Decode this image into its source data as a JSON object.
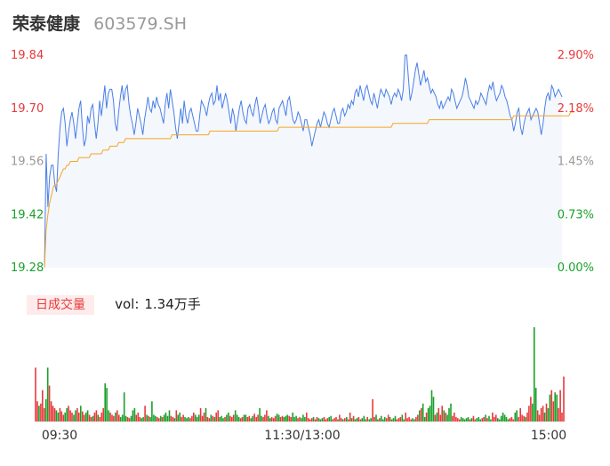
{
  "header": {
    "name": "荣泰健康",
    "code": "603579.SH"
  },
  "volume_panel": {
    "badge": "日成交量",
    "label": "vol:",
    "value": "1.34万手"
  },
  "colors": {
    "price_line": "#4a7fe6",
    "avg_line": "#f5a623",
    "up": "#e8393b",
    "down": "#1aa12a",
    "neutral": "#999999",
    "area_fill": "#f4f7fc"
  },
  "chart_data": [
    {
      "type": "line",
      "series": [
        {
          "values": [
            19.28,
            19.58,
            19.44,
            19.52,
            19.55,
            19.55,
            19.5,
            19.48,
            19.58,
            19.65,
            19.69,
            19.7,
            19.66,
            19.6,
            19.64,
            19.67,
            19.69,
            19.66,
            19.62,
            19.66,
            19.7,
            19.72,
            19.65,
            19.6,
            19.62,
            19.68,
            19.66,
            19.7,
            19.71,
            19.66,
            19.62,
            19.66,
            19.72,
            19.68,
            19.72,
            19.76,
            19.7,
            19.74,
            19.75,
            19.75,
            19.72,
            19.66,
            19.64,
            19.69,
            19.73,
            19.76,
            19.72,
            19.75,
            19.76,
            19.71,
            19.68,
            19.66,
            19.63,
            19.66,
            19.7,
            19.68,
            19.66,
            19.63,
            19.67,
            19.7,
            19.73,
            19.7,
            19.69,
            19.72,
            19.7,
            19.73,
            19.71,
            19.7,
            19.68,
            19.66,
            19.71,
            19.74,
            19.7,
            19.75,
            19.72,
            19.69,
            19.65,
            19.62,
            19.66,
            19.7,
            19.66,
            19.72,
            19.68,
            19.66,
            19.69,
            19.7,
            19.68,
            19.66,
            19.64,
            19.64,
            19.68,
            19.72,
            19.71,
            19.7,
            19.68,
            19.71,
            19.73,
            19.74,
            19.71,
            19.72,
            19.76,
            19.72,
            19.74,
            19.7,
            19.72,
            19.74,
            19.72,
            19.69,
            19.66,
            19.7,
            19.68,
            19.64,
            19.67,
            19.7,
            19.72,
            19.69,
            19.67,
            19.66,
            19.7,
            19.71,
            19.69,
            19.68,
            19.71,
            19.73,
            19.7,
            19.66,
            19.68,
            19.7,
            19.71,
            19.68,
            19.66,
            19.67,
            19.69,
            19.7,
            19.67,
            19.66,
            19.7,
            19.71,
            19.72,
            19.7,
            19.68,
            19.72,
            19.73,
            19.7,
            19.67,
            19.66,
            19.67,
            19.69,
            19.68,
            19.66,
            19.64,
            19.67,
            19.67,
            19.65,
            19.63,
            19.6,
            19.62,
            19.64,
            19.66,
            19.67,
            19.65,
            19.67,
            19.69,
            19.68,
            19.66,
            19.65,
            19.67,
            19.69,
            19.7,
            19.68,
            19.66,
            19.66,
            19.69,
            19.7,
            19.68,
            19.69,
            19.71,
            19.7,
            19.72,
            19.71,
            19.74,
            19.75,
            19.73,
            19.76,
            19.74,
            19.72,
            19.75,
            19.76,
            19.74,
            19.72,
            19.71,
            19.74,
            19.72,
            19.7,
            19.73,
            19.75,
            19.74,
            19.73,
            19.75,
            19.74,
            19.73,
            19.71,
            19.73,
            19.74,
            19.73,
            19.75,
            19.74,
            19.72,
            19.75,
            19.84,
            19.84,
            19.78,
            19.72,
            19.74,
            19.77,
            19.8,
            19.82,
            19.79,
            19.76,
            19.78,
            19.8,
            19.77,
            19.78,
            19.76,
            19.74,
            19.75,
            19.74,
            19.73,
            19.71,
            19.7,
            19.72,
            19.7,
            19.71,
            19.72,
            19.73,
            19.72,
            19.75,
            19.74,
            19.72,
            19.7,
            19.71,
            19.72,
            19.73,
            19.75,
            19.78,
            19.76,
            19.73,
            19.72,
            19.71,
            19.7,
            19.72,
            19.71,
            19.72,
            19.74,
            19.73,
            19.72,
            19.71,
            19.74,
            19.76,
            19.75,
            19.77,
            19.74,
            19.72,
            19.73,
            19.74,
            19.76,
            19.75,
            19.73,
            19.72,
            19.7,
            19.68,
            19.67,
            19.64,
            19.66,
            19.69,
            19.7,
            19.65,
            19.63,
            19.66,
            19.68,
            19.69,
            19.7,
            19.67,
            19.68,
            19.69,
            19.7,
            19.69,
            19.66,
            19.63,
            19.66,
            19.7,
            19.73,
            19.74,
            19.72,
            19.76,
            19.75,
            19.73,
            19.74,
            19.75,
            19.74,
            19.73
          ]
        },
        {
          "values": [
            19.28,
            19.38,
            19.42,
            19.45,
            19.47,
            19.49,
            19.5,
            19.5,
            19.51,
            19.52,
            19.53,
            19.54,
            19.54,
            19.55,
            19.55,
            19.56,
            19.56,
            19.56,
            19.56,
            19.56,
            19.57,
            19.57,
            19.57,
            19.57,
            19.57,
            19.57,
            19.57,
            19.58,
            19.58,
            19.58,
            19.58,
            19.58,
            19.58,
            19.58,
            19.59,
            19.59,
            19.59,
            19.59,
            19.6,
            19.6,
            19.6,
            19.6,
            19.6,
            19.61,
            19.61,
            19.61,
            19.61,
            19.62,
            19.62,
            19.62,
            19.62,
            19.62,
            19.62,
            19.62,
            19.62,
            19.62,
            19.62,
            19.62,
            19.62,
            19.62,
            19.62,
            19.62,
            19.62,
            19.62,
            19.62,
            19.62,
            19.62,
            19.62,
            19.62,
            19.62,
            19.62,
            19.62,
            19.62,
            19.62,
            19.63,
            19.63,
            19.63,
            19.63,
            19.63,
            19.63,
            19.63,
            19.63,
            19.63,
            19.63,
            19.63,
            19.63,
            19.63,
            19.63,
            19.63,
            19.63,
            19.63,
            19.63,
            19.63,
            19.63,
            19.63,
            19.63,
            19.64,
            19.64,
            19.64,
            19.64,
            19.64,
            19.64,
            19.64,
            19.64,
            19.64,
            19.64,
            19.64,
            19.64,
            19.64,
            19.64,
            19.64,
            19.64,
            19.64,
            19.64,
            19.64,
            19.64,
            19.64,
            19.64,
            19.64,
            19.64,
            19.64,
            19.64,
            19.64,
            19.64,
            19.64,
            19.64,
            19.64,
            19.64,
            19.64,
            19.64,
            19.64,
            19.64,
            19.64,
            19.64,
            19.64,
            19.64,
            19.65,
            19.65,
            19.65,
            19.65,
            19.65,
            19.65,
            19.65,
            19.65,
            19.65,
            19.65,
            19.65,
            19.65,
            19.65,
            19.65,
            19.65,
            19.65,
            19.65,
            19.65,
            19.65,
            19.65,
            19.65,
            19.65,
            19.65,
            19.65,
            19.65,
            19.65,
            19.65,
            19.65,
            19.65,
            19.65,
            19.65,
            19.65,
            19.65,
            19.65,
            19.65,
            19.65,
            19.65,
            19.65,
            19.65,
            19.65,
            19.65,
            19.65,
            19.65,
            19.65,
            19.65,
            19.65,
            19.65,
            19.65,
            19.65,
            19.65,
            19.65,
            19.65,
            19.65,
            19.65,
            19.65,
            19.65,
            19.65,
            19.65,
            19.65,
            19.65,
            19.65,
            19.65,
            19.65,
            19.65,
            19.65,
            19.65,
            19.66,
            19.66,
            19.66,
            19.66,
            19.66,
            19.66,
            19.66,
            19.66,
            19.66,
            19.66,
            19.66,
            19.66,
            19.66,
            19.66,
            19.66,
            19.66,
            19.66,
            19.66,
            19.66,
            19.66,
            19.66,
            19.67,
            19.67,
            19.67,
            19.67,
            19.67,
            19.67,
            19.67,
            19.67,
            19.67,
            19.67,
            19.67,
            19.67,
            19.67,
            19.67,
            19.67,
            19.67,
            19.67,
            19.67,
            19.67,
            19.67,
            19.67,
            19.67,
            19.67,
            19.67,
            19.67,
            19.67,
            19.67,
            19.67,
            19.67,
            19.67,
            19.67,
            19.67,
            19.67,
            19.67,
            19.67,
            19.67,
            19.67,
            19.67,
            19.67,
            19.67,
            19.67,
            19.67,
            19.67,
            19.67,
            19.67,
            19.67,
            19.67,
            19.67,
            19.67,
            19.68,
            19.68,
            19.68,
            19.68,
            19.68,
            19.68,
            19.68,
            19.68,
            19.68,
            19.68,
            19.68,
            19.68,
            19.68,
            19.68,
            19.68,
            19.68,
            19.68,
            19.68,
            19.68,
            19.68,
            19.68,
            19.68,
            19.68,
            19.68,
            19.68,
            19.68,
            19.68,
            19.68,
            19.68,
            19.68,
            19.68,
            19.68,
            19.68,
            19.69,
            19.69,
            19.69
          ]
        }
      ],
      "ylim": [
        19.28,
        19.84
      ],
      "y_ticks": [
        "19.84",
        "19.70",
        "19.56",
        "19.42",
        "19.28"
      ],
      "y_ticks_right": [
        "2.90%",
        "2.18%",
        "1.45%",
        "0.73%",
        "0.00%"
      ],
      "x_ticks": [
        "09:30",
        "11:30/13:00",
        "15:00"
      ]
    },
    {
      "type": "bar",
      "series": [
        {
          "values": [
            0.48,
            0.18,
            0.14,
            0.16,
            0.28,
            0.12,
            0.2,
            0.48,
            0.32,
            0.18,
            0.14,
            0.12,
            0.1,
            0.08,
            0.12,
            0.09,
            0.06,
            0.08,
            0.12,
            0.14,
            0.1,
            0.08,
            0.06,
            0.1,
            0.12,
            0.08,
            0.14,
            0.09,
            0.06,
            0.08,
            0.1,
            0.06,
            0.04,
            0.05,
            0.08,
            0.1,
            0.06,
            0.04,
            0.08,
            0.12,
            0.34,
            0.3,
            0.1,
            0.08,
            0.06,
            0.05,
            0.08,
            0.1,
            0.06,
            0.04,
            0.06,
            0.26,
            0.05,
            0.04,
            0.03,
            0.05,
            0.1,
            0.12,
            0.06,
            0.08,
            0.04,
            0.03,
            0.04,
            0.14,
            0.06,
            0.05,
            0.04,
            0.18,
            0.06,
            0.05,
            0.04,
            0.03,
            0.05,
            0.04,
            0.06,
            0.08,
            0.05,
            0.1,
            0.05,
            0.04,
            0.03,
            0.1,
            0.06,
            0.08,
            0.04,
            0.06,
            0.04,
            0.03,
            0.04,
            0.03,
            0.05,
            0.08,
            0.06,
            0.04,
            0.06,
            0.12,
            0.05,
            0.08,
            0.12,
            0.04,
            0.03,
            0.06,
            0.05,
            0.04,
            0.08,
            0.1,
            0.04,
            0.05,
            0.03,
            0.04,
            0.06,
            0.08,
            0.05,
            0.04,
            0.06,
            0.1,
            0.06,
            0.04,
            0.03,
            0.04,
            0.06,
            0.06,
            0.04,
            0.05,
            0.03,
            0.05,
            0.07,
            0.04,
            0.06,
            0.12,
            0.05,
            0.04,
            0.06,
            0.1,
            0.05,
            0.03,
            0.04,
            0.03,
            0.05,
            0.07,
            0.06,
            0.04,
            0.05,
            0.04,
            0.05,
            0.06,
            0.05,
            0.04,
            0.08,
            0.04,
            0.05,
            0.03,
            0.04,
            0.03,
            0.06,
            0.04,
            0.08,
            0.03,
            0.02,
            0.03,
            0.04,
            0.02,
            0.04,
            0.03,
            0.02,
            0.03,
            0.04,
            0.02,
            0.03,
            0.04,
            0.05,
            0.02,
            0.03,
            0.04,
            0.02,
            0.06,
            0.03,
            0.02,
            0.03,
            0.04,
            0.02,
            0.08,
            0.03,
            0.05,
            0.02,
            0.03,
            0.04,
            0.02,
            0.03,
            0.05,
            0.02,
            0.04,
            0.02,
            0.03,
            0.2,
            0.04,
            0.06,
            0.02,
            0.03,
            0.05,
            0.02,
            0.04,
            0.03,
            0.06,
            0.04,
            0.02,
            0.03,
            0.05,
            0.02,
            0.03,
            0.04,
            0.06,
            0.02,
            0.08,
            0.03,
            0.04,
            0.02,
            0.03,
            0.02,
            0.04,
            0.06,
            0.1,
            0.12,
            0.16,
            0.04,
            0.08,
            0.12,
            0.14,
            0.28,
            0.22,
            0.06,
            0.08,
            0.12,
            0.06,
            0.14,
            0.1,
            0.08,
            0.06,
            0.12,
            0.16,
            0.05,
            0.08,
            0.04,
            0.03,
            0.02,
            0.04,
            0.03,
            0.02,
            0.03,
            0.04,
            0.02,
            0.03,
            0.05,
            0.02,
            0.03,
            0.04,
            0.02,
            0.03,
            0.04,
            0.06,
            0.03,
            0.05,
            0.02,
            0.08,
            0.04,
            0.06,
            0.03,
            0.02,
            0.05,
            0.08,
            0.06,
            0.04,
            0.02,
            0.03,
            0.04,
            0.02,
            0.08,
            0.1,
            0.04,
            0.12,
            0.06,
            0.05,
            0.04,
            0.08,
            0.14,
            0.22,
            0.16,
            0.84,
            0.3,
            0.1,
            0.06,
            0.12,
            0.14,
            0.08,
            0.16,
            0.12,
            0.24,
            0.28,
            0.18,
            0.26,
            0.24,
            0.12,
            0.28,
            0.08,
            0.4
          ]
        }
      ]
    }
  ]
}
